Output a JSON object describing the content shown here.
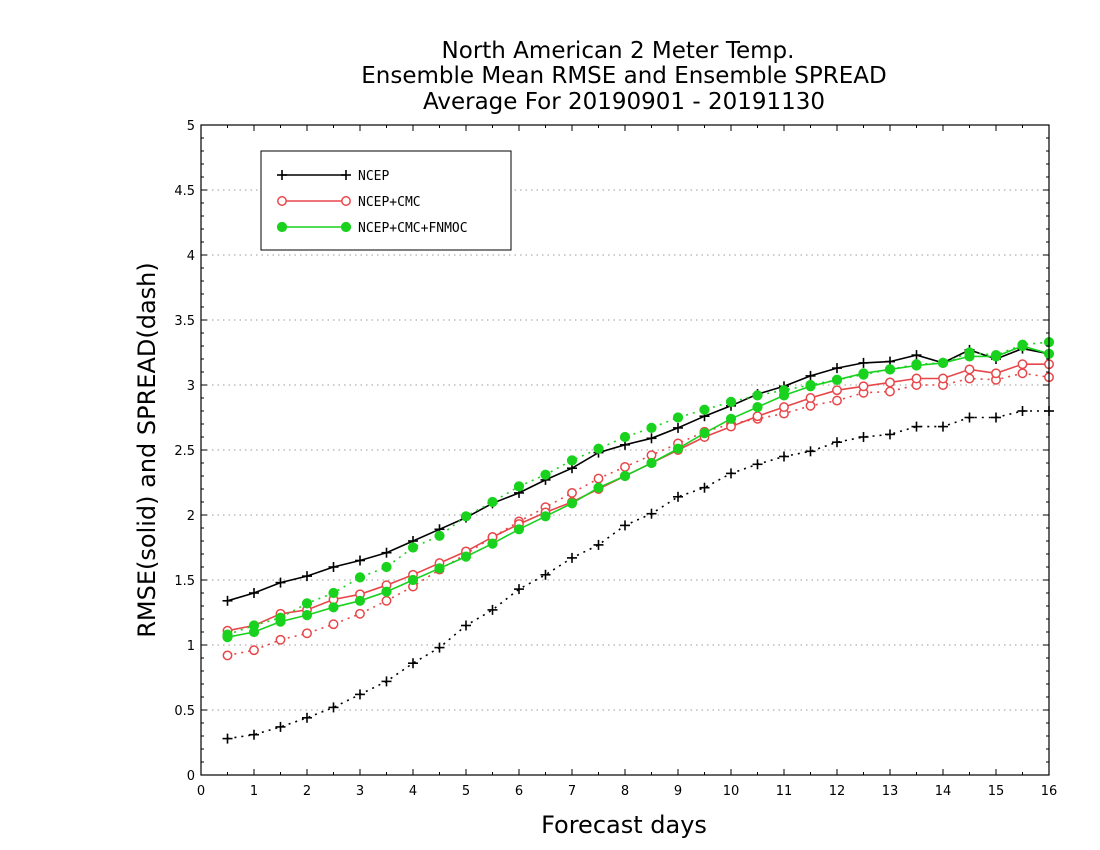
{
  "chart_data": {
    "type": "line",
    "title_lines": [
      "North American 2 Meter Temp.",
      "Ensemble Mean RMSE and Ensemble SPREAD",
      "Average For 20190901 - 20191130"
    ],
    "xlabel": "Forecast days",
    "ylabel": "RMSE(solid) and SPREAD(dash)",
    "xlim": [
      0,
      16
    ],
    "ylim": [
      0,
      5
    ],
    "xticks": [
      "0",
      "1",
      "2",
      "3",
      "4",
      "5",
      "6",
      "7",
      "8",
      "9",
      "10",
      "11",
      "12",
      "13",
      "14",
      "15",
      "16"
    ],
    "yticks": [
      "0",
      "0.5",
      "1",
      "1.5",
      "2",
      "2.5",
      "3",
      "3.5",
      "4",
      "4.5",
      "5"
    ],
    "grid": "horizontal dotted",
    "legend_position": "top-left",
    "x": [
      0.5,
      1,
      1.5,
      2,
      2.5,
      3,
      3.5,
      4,
      4.5,
      5,
      5.5,
      6,
      6.5,
      7,
      7.5,
      8,
      8.5,
      9,
      9.5,
      10,
      10.5,
      11,
      11.5,
      12,
      12.5,
      13,
      13.5,
      14,
      14.5,
      15,
      15.5,
      16
    ],
    "series": [
      {
        "name": "NCEP",
        "color": "#000000",
        "marker": "plus",
        "rmse": [
          1.34,
          1.4,
          1.48,
          1.53,
          1.6,
          1.65,
          1.71,
          1.8,
          1.89,
          1.98,
          2.09,
          2.17,
          2.27,
          2.36,
          2.48,
          2.54,
          2.59,
          2.67,
          2.76,
          2.84,
          2.93,
          2.99,
          3.07,
          3.13,
          3.17,
          3.18,
          3.23,
          3.17,
          3.27,
          3.2,
          3.28,
          3.24
        ],
        "spread": [
          0.28,
          0.31,
          0.37,
          0.44,
          0.52,
          0.62,
          0.72,
          0.86,
          0.98,
          1.15,
          1.27,
          1.43,
          1.54,
          1.67,
          1.77,
          1.92,
          2.01,
          2.14,
          2.21,
          2.32,
          2.39,
          2.45,
          2.49,
          2.56,
          2.6,
          2.62,
          2.68,
          2.68,
          2.75,
          2.75,
          2.8,
          2.8
        ]
      },
      {
        "name": "NCEP+CMC",
        "color": "#e8474a",
        "marker": "open-circle",
        "rmse": [
          1.11,
          1.15,
          1.24,
          1.27,
          1.35,
          1.39,
          1.46,
          1.54,
          1.63,
          1.72,
          1.83,
          1.93,
          2.02,
          2.1,
          2.2,
          2.3,
          2.4,
          2.5,
          2.6,
          2.68,
          2.76,
          2.83,
          2.9,
          2.96,
          2.99,
          3.02,
          3.05,
          3.05,
          3.12,
          3.09,
          3.16,
          3.16
        ],
        "spread": [
          0.92,
          0.96,
          1.04,
          1.09,
          1.16,
          1.24,
          1.34,
          1.45,
          1.58,
          1.7,
          1.83,
          1.95,
          2.06,
          2.17,
          2.28,
          2.37,
          2.46,
          2.55,
          2.64,
          2.7,
          2.74,
          2.78,
          2.84,
          2.88,
          2.94,
          2.95,
          3.0,
          3.0,
          3.05,
          3.04,
          3.09,
          3.06
        ]
      },
      {
        "name": "NCEP+CMC+FNMOC",
        "color": "#19d21e",
        "marker": "filled-circle",
        "rmse": [
          1.06,
          1.1,
          1.18,
          1.23,
          1.29,
          1.34,
          1.41,
          1.5,
          1.59,
          1.68,
          1.78,
          1.89,
          1.99,
          2.09,
          2.21,
          2.3,
          2.4,
          2.51,
          2.63,
          2.74,
          2.83,
          2.92,
          2.99,
          3.04,
          3.09,
          3.12,
          3.15,
          3.17,
          3.22,
          3.22,
          3.3,
          3.24
        ],
        "spread": [
          1.08,
          1.15,
          1.21,
          1.32,
          1.4,
          1.52,
          1.6,
          1.75,
          1.84,
          1.99,
          2.1,
          2.22,
          2.31,
          2.42,
          2.51,
          2.6,
          2.67,
          2.75,
          2.81,
          2.87,
          2.92,
          2.96,
          3.0,
          3.04,
          3.08,
          3.12,
          3.16,
          3.17,
          3.25,
          3.23,
          3.31,
          3.33
        ]
      }
    ]
  }
}
